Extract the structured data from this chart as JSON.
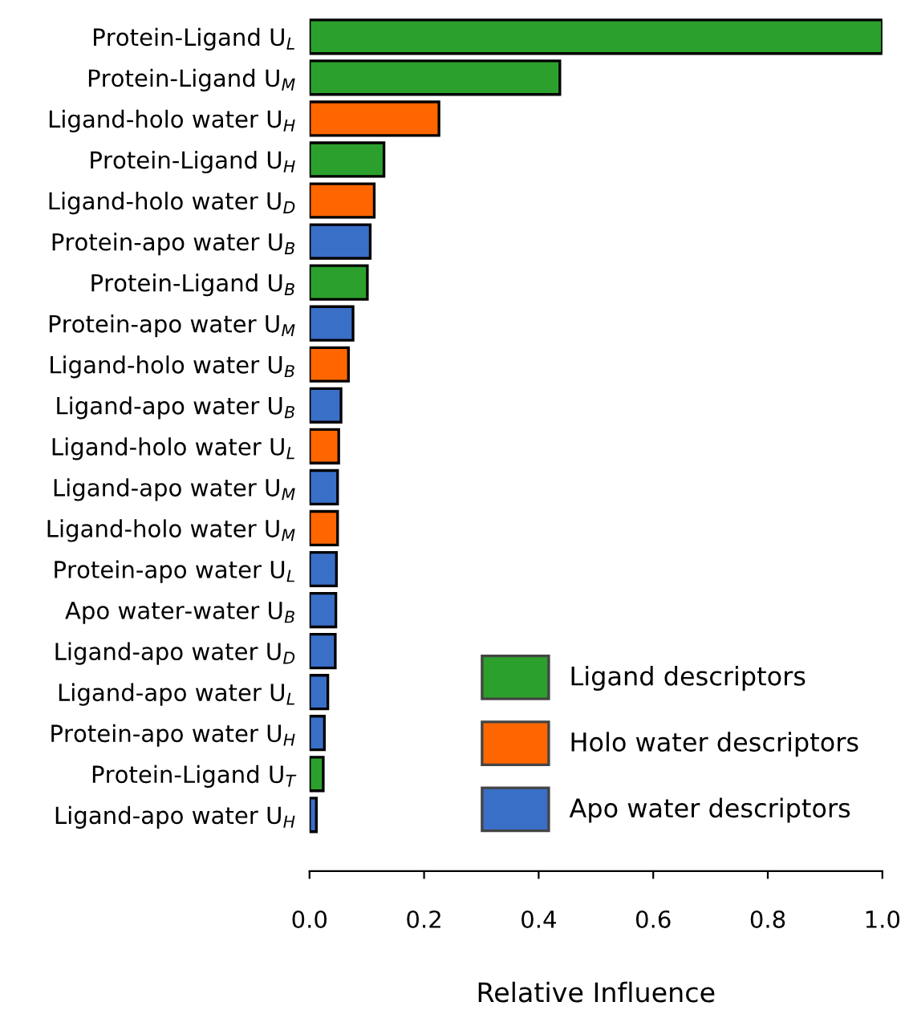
{
  "chart_data": {
    "type": "bar",
    "orientation": "horizontal",
    "xlabel": "Relative Influence",
    "categories": [
      "Protein-Ligand U$_{L}$",
      "Protein-Ligand U$_{M}$",
      "Ligand-holo water U$_{H}$",
      "Protein-Ligand U$_{H}$",
      "Ligand-holo water U$_{D}$",
      "Protein-apo water U$_{B}$",
      "Protein-Ligand U$_{B}$",
      "Protein-apo water U$_{M}$",
      "Ligand-holo water U$_{B}$",
      "Ligand-apo water U$_{B}$",
      "Ligand-holo water U$_{L}$",
      "Ligand-apo water U$_{M}$",
      "Ligand-holo water U$_{M}$",
      "Protein-apo water U$_{L}$",
      "Apo water-water U$_{B}$",
      "Ligand-apo water U$_{D}$",
      "Ligand-apo water U$_{L}$",
      "Protein-apo water U$_{H}$",
      "Protein-Ligand U$_{T}$",
      "Ligand-apo water U$_{H}$"
    ],
    "series": [
      {
        "name": "Ligand descriptors",
        "color": "#2ca02c",
        "values": [
          1.0,
          0.437,
          null,
          0.13,
          null,
          null,
          0.101,
          null,
          null,
          null,
          null,
          null,
          null,
          null,
          null,
          null,
          null,
          null,
          0.024,
          null
        ]
      },
      {
        "name": "Holo water descriptors",
        "color": "#ff6600",
        "values": [
          null,
          null,
          0.226,
          null,
          0.113,
          null,
          null,
          null,
          0.068,
          null,
          0.051,
          null,
          0.049,
          null,
          null,
          null,
          null,
          null,
          null,
          null
        ]
      },
      {
        "name": "Apo water descriptors",
        "color": "#3a6fc8",
        "values": [
          null,
          null,
          null,
          null,
          null,
          0.106,
          null,
          0.076,
          null,
          0.055,
          null,
          0.049,
          null,
          0.047,
          0.046,
          0.045,
          0.032,
          0.026,
          null,
          0.012
        ]
      }
    ],
    "xlim": [
      0,
      1.0
    ],
    "xticks": [
      {
        "value": 0,
        "label": "0.0"
      },
      {
        "value": 0.2,
        "label": "0.2"
      },
      {
        "value": 0.4,
        "label": "0.4"
      },
      {
        "value": 0.6,
        "label": "0.6"
      },
      {
        "value": 0.8,
        "label": "0.8"
      },
      {
        "value": 1.0,
        "label": "1.0"
      }
    ],
    "legend": "bottom right",
    "grid": false
  }
}
